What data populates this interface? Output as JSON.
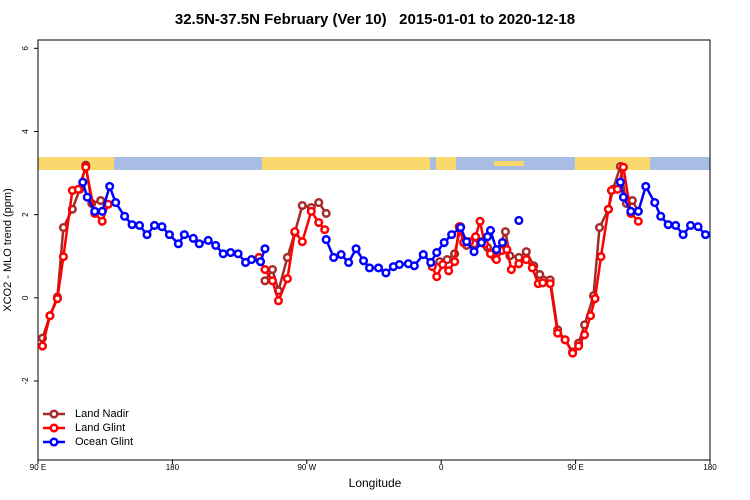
{
  "chart_data": {
    "type": "line",
    "title": "32.5N-37.5N February (Ver 10)   2015-01-01 to 2020-12-18",
    "x_label": "Longitude",
    "y_label": "XCO2 - MLO trend (ppm)",
    "xlim": [
      90,
      540
    ],
    "ylim": [
      -3.9,
      6.2
    ],
    "xticks": [
      {
        "value": 90,
        "label": "90 E"
      },
      180,
      {
        "value": 270,
        "label": "90 W"
      },
      {
        "value": 360,
        "label": "0"
      },
      {
        "value": 450,
        "label": "90 E"
      },
      {
        "value": 540,
        "label": "180"
      }
    ],
    "yticks": [
      -2,
      0,
      2,
      4,
      6
    ],
    "legend": "bottom-left",
    "series": [
      {
        "name": "Land Nadir",
        "color": "#a52a2a",
        "x": [
          93,
          98,
          103,
          107,
          113,
          118,
          122,
          126,
          132,
          190,
          242,
          247,
          251,
          257,
          262,
          267,
          273,
          278,
          283,
          320,
          359,
          364,
          369,
          373,
          377,
          382,
          387,
          391,
          396,
          403,
          406,
          412,
          417,
          422,
          426,
          433,
          438,
          443,
          448,
          452,
          456,
          462,
          466,
          472,
          475,
          480,
          484,
          488,
          492
        ],
        "values": [
          -0.97,
          -0.43,
          0.02,
          1.69,
          2.13,
          2.61,
          3.19,
          2.27,
          2.34,
          null,
          0.41,
          0.68,
          0.17,
          0.97,
          1.57,
          2.22,
          2.17,
          2.29,
          2.03,
          null,
          0.87,
          0.92,
          1.06,
          1.71,
          1.26,
          1.3,
          1.35,
          1.21,
          0.97,
          1.59,
          1.01,
          0.97,
          1.11,
          0.77,
          0.56,
          0.43,
          -0.77,
          -1.01,
          -1.3,
          -1.09,
          -0.65,
          0.05,
          1.69,
          2.13,
          2.61,
          3.16,
          2.27,
          2.34,
          2.08
        ]
      },
      {
        "name": "Land Glint",
        "color": "#ff0000",
        "x": [
          93,
          98,
          103,
          107,
          113,
          117,
          122,
          128,
          133,
          137,
          190,
          238,
          242,
          247,
          251,
          257,
          262,
          267,
          273,
          278,
          282,
          320,
          354,
          357,
          361,
          365,
          369,
          372,
          375,
          379,
          383,
          386,
          389,
          393,
          397,
          401,
          404,
          407,
          412,
          417,
          421,
          425,
          428,
          433,
          438,
          443,
          448,
          452,
          456,
          460,
          463,
          467,
          472,
          474,
          478,
          482,
          487,
          492
        ],
        "values": [
          -1.16,
          -0.43,
          -0.02,
          0.99,
          2.58,
          2.61,
          3.14,
          2.03,
          1.84,
          2.25,
          null,
          0.97,
          0.68,
          0.41,
          -0.07,
          0.46,
          1.59,
          1.35,
          2.08,
          1.81,
          1.64,
          null,
          0.75,
          0.51,
          0.8,
          0.65,
          0.87,
          1.71,
          1.33,
          1.35,
          1.47,
          1.84,
          1.3,
          1.06,
          0.92,
          1.14,
          1.16,
          0.68,
          0.82,
          0.92,
          0.72,
          0.34,
          0.36,
          0.34,
          -0.85,
          -1.01,
          -1.33,
          -1.16,
          -0.89,
          -0.43,
          -0.02,
          0.99,
          2.13,
          2.58,
          2.61,
          3.14,
          2.03,
          1.84
        ]
      },
      {
        "name": "Ocean Glint",
        "color": "#0000ff",
        "x": [
          120,
          123,
          128,
          133,
          138,
          142,
          148,
          153,
          158,
          163,
          168,
          173,
          178,
          184,
          188,
          194,
          198,
          204,
          209,
          214,
          219,
          224,
          229,
          233,
          239,
          242,
          260,
          283,
          288,
          293,
          298,
          303,
          308,
          312,
          318,
          323,
          328,
          332,
          338,
          342,
          348,
          353,
          357,
          362,
          367,
          373,
          377,
          382,
          387,
          391,
          393,
          397,
          401,
          406,
          412,
          450,
          480,
          482,
          487,
          492,
          497,
          503,
          507,
          512,
          517,
          522,
          527,
          532,
          537
        ],
        "values": [
          2.78,
          2.42,
          2.08,
          2.08,
          2.68,
          2.29,
          1.96,
          1.76,
          1.74,
          1.52,
          1.74,
          1.71,
          1.52,
          1.3,
          1.52,
          1.43,
          1.3,
          1.38,
          1.26,
          1.06,
          1.09,
          1.06,
          0.85,
          0.92,
          0.87,
          1.18,
          null,
          1.4,
          0.97,
          1.04,
          0.85,
          1.18,
          0.89,
          0.72,
          0.72,
          0.6,
          0.75,
          0.8,
          0.82,
          0.77,
          1.04,
          0.85,
          1.09,
          1.33,
          1.52,
          1.69,
          1.35,
          1.11,
          1.33,
          1.47,
          1.62,
          1.16,
          1.33,
          null,
          1.86,
          null,
          2.78,
          2.42,
          2.08,
          2.08,
          2.68,
          2.29,
          1.96,
          1.76,
          1.74,
          1.52,
          1.74,
          1.71,
          1.52
        ]
      }
    ]
  }
}
